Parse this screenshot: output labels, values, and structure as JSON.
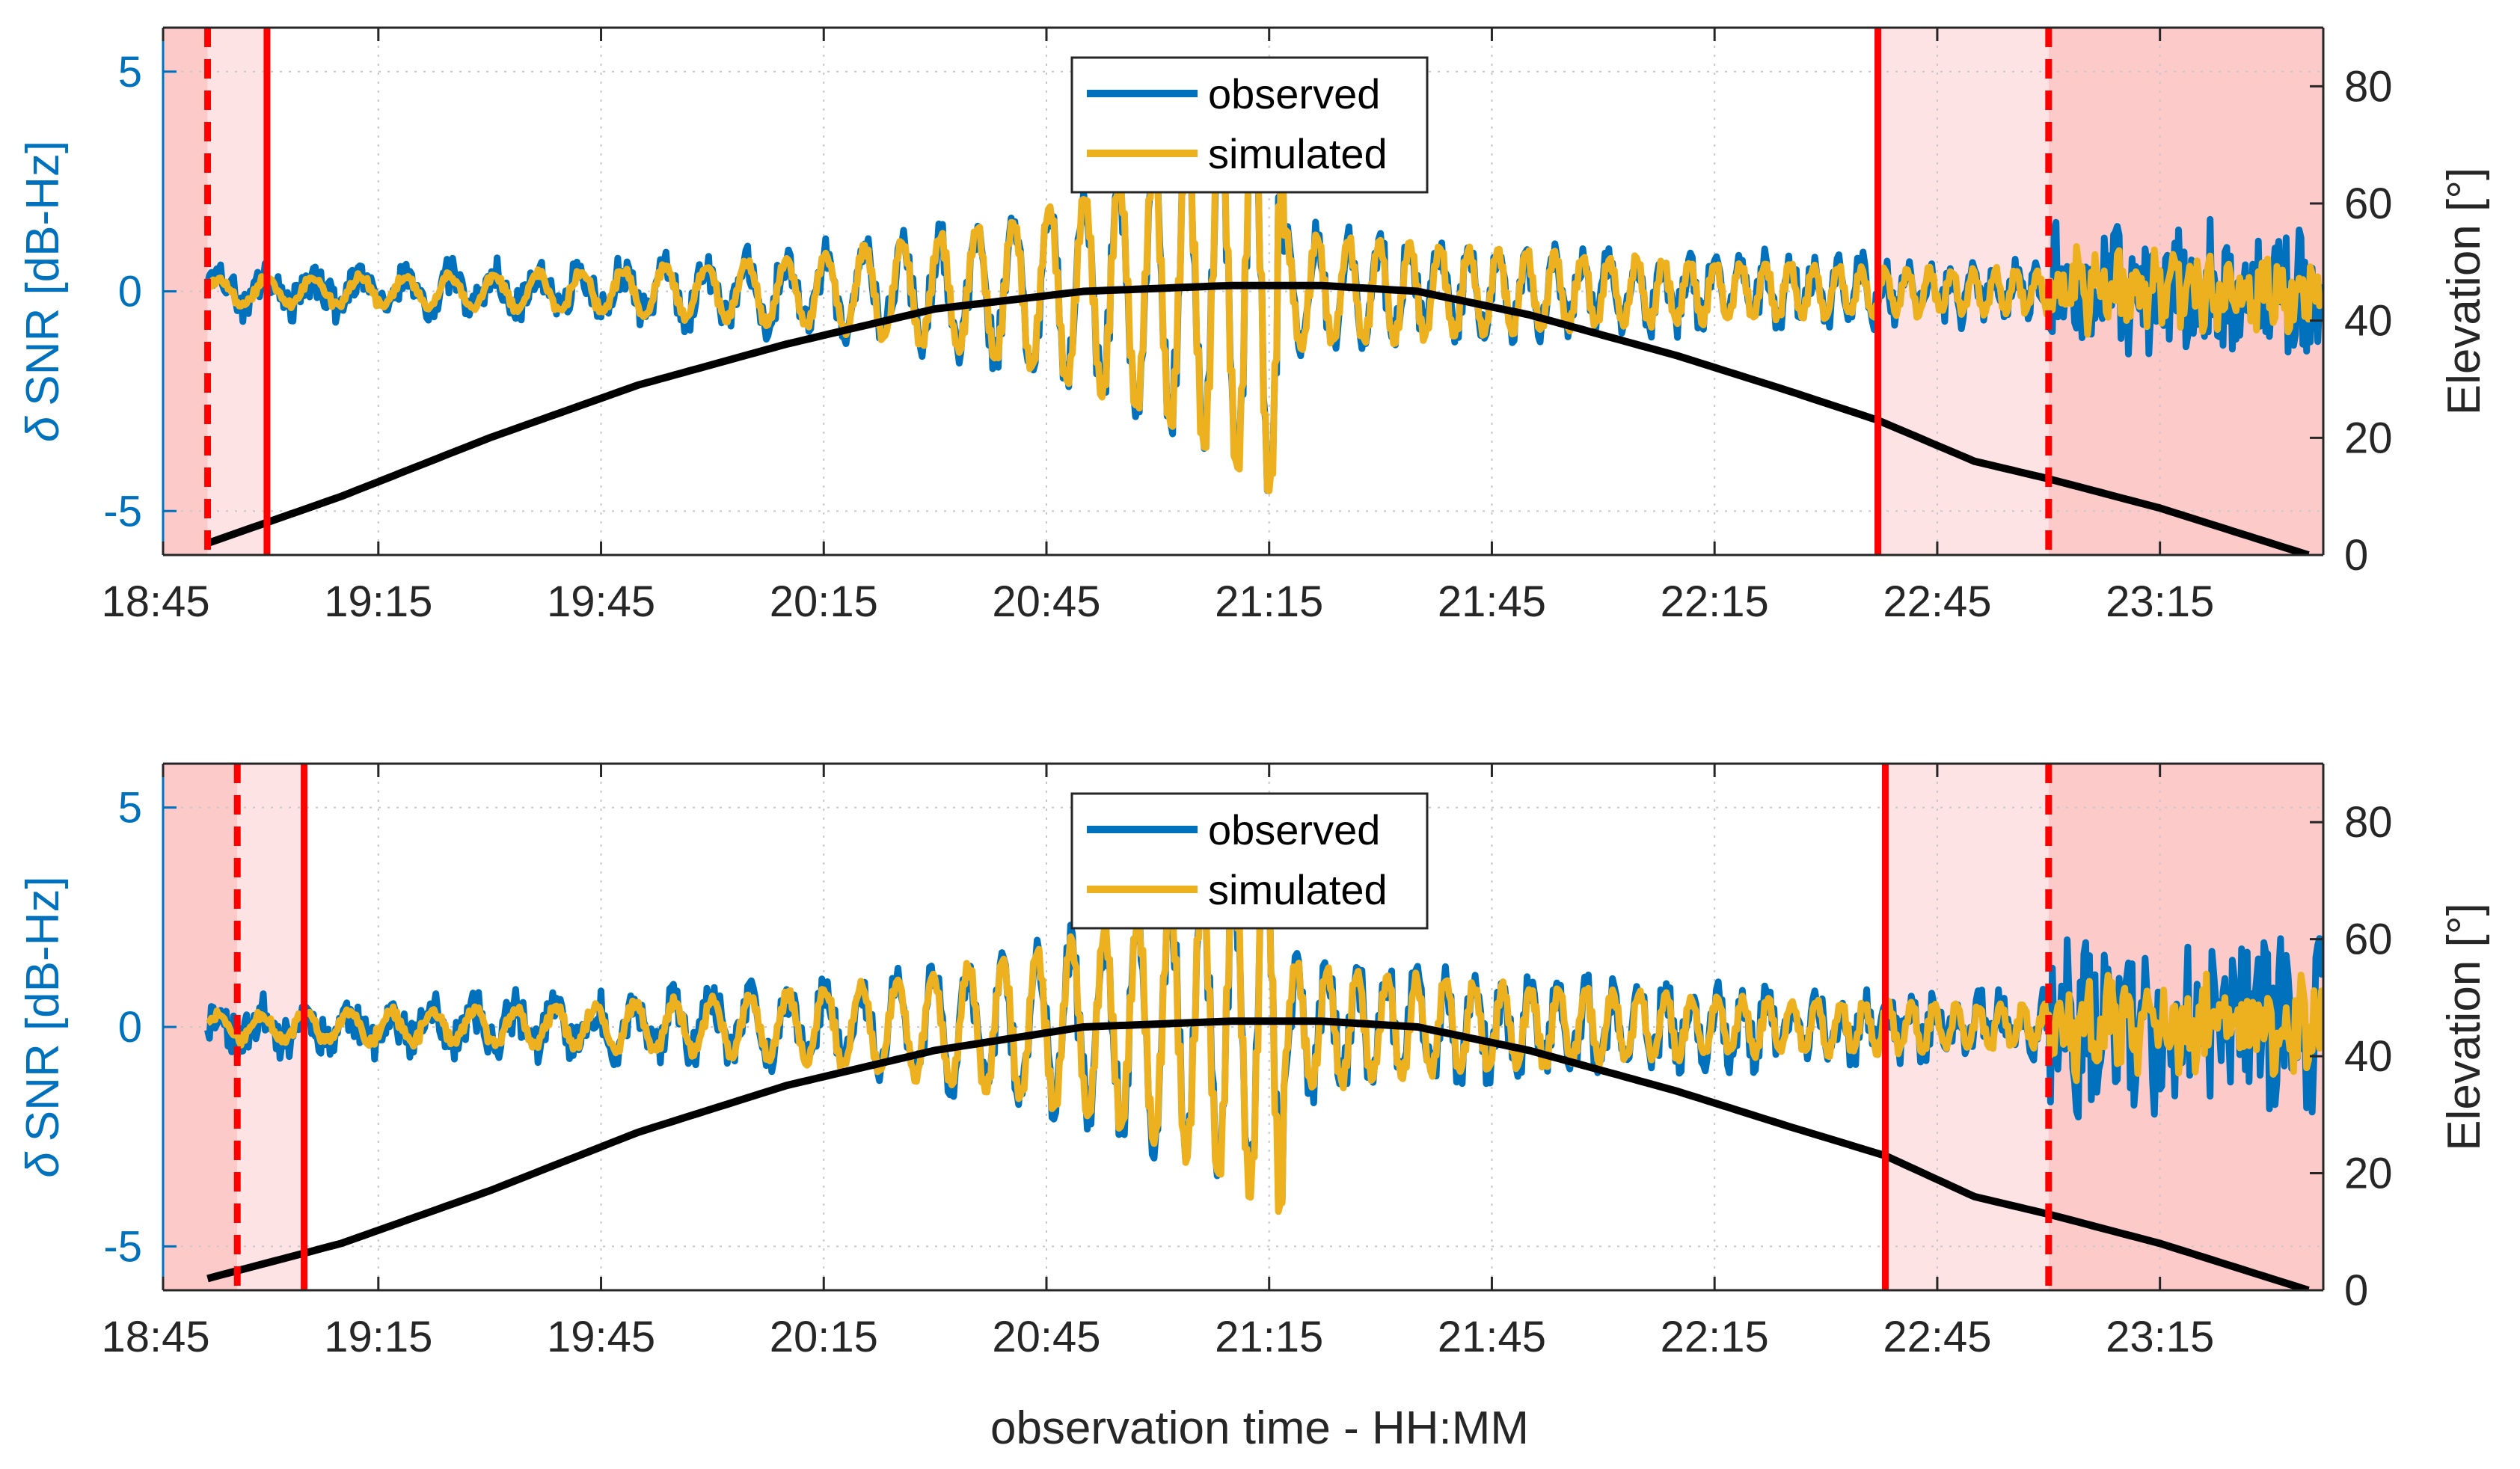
{
  "xlabel": "observation time - HH:MM",
  "colors": {
    "observed": "#0072BD",
    "simulated": "#EDB120",
    "elevation": "#000000",
    "marker": "#FF0000",
    "shade_dark": "#FDCACA",
    "shade_light": "#FDE3E4",
    "left_axis": "#0072BD",
    "grid": "#C8C8C8"
  },
  "chart_data": [
    {
      "type": "line",
      "panel": "top",
      "ylabel_left_symbol": "δ",
      "ylabel_left": "SNR [dB-Hz]",
      "ylabel_right": "Elevation [°]",
      "xlim_minutes": [
        1126,
        1417
      ],
      "ylim_left": [
        -6,
        6
      ],
      "ylim_right": [
        0,
        90
      ],
      "x_ticks": [
        {
          "minutes": 1125,
          "label": "18:45"
        },
        {
          "minutes": 1155,
          "label": "19:15"
        },
        {
          "minutes": 1185,
          "label": "19:45"
        },
        {
          "minutes": 1215,
          "label": "20:15"
        },
        {
          "minutes": 1245,
          "label": "20:45"
        },
        {
          "minutes": 1275,
          "label": "21:15"
        },
        {
          "minutes": 1305,
          "label": "21:45"
        },
        {
          "minutes": 1335,
          "label": "22:15"
        },
        {
          "minutes": 1365,
          "label": "22:45"
        },
        {
          "minutes": 1395,
          "label": "23:15"
        }
      ],
      "y_ticks_left": [
        {
          "value": 5,
          "label": "5"
        },
        {
          "value": 0,
          "label": "0"
        },
        {
          "value": -5,
          "label": "-5"
        }
      ],
      "y_ticks_right": [
        {
          "value": 80,
          "label": "80"
        },
        {
          "value": 60,
          "label": "60"
        },
        {
          "value": 40,
          "label": "40"
        },
        {
          "value": 20,
          "label": "20"
        },
        {
          "value": 0,
          "label": "0"
        }
      ],
      "grid": true,
      "legend": {
        "position": "top-center",
        "entries": [
          "observed",
          "simulated"
        ]
      },
      "shaded_regions": [
        {
          "x0": 1126,
          "x1": 1132,
          "shade": "dark"
        },
        {
          "x0": 1132,
          "x1": 1140,
          "shade": "light"
        },
        {
          "x0": 1357,
          "x1": 1380,
          "shade": "light"
        },
        {
          "x0": 1380,
          "x1": 1417,
          "shade": "dark"
        }
      ],
      "marker_lines": [
        {
          "x": 1132,
          "style": "dashed"
        },
        {
          "x": 1140,
          "style": "solid"
        },
        {
          "x": 1357,
          "style": "solid"
        },
        {
          "x": 1380,
          "style": "dashed"
        }
      ],
      "elevation": {
        "x": [
          1132,
          1150,
          1170,
          1190,
          1210,
          1230,
          1250,
          1270,
          1282,
          1295,
          1310,
          1330,
          1345,
          1357,
          1370,
          1380,
          1395,
          1415
        ],
        "y": [
          2,
          10,
          20,
          29,
          36,
          42,
          45,
          46,
          46,
          45,
          41,
          34,
          28,
          23,
          16,
          13,
          8,
          0
        ]
      },
      "series_params": {
        "start": 1132,
        "end": 1417,
        "peak": 1277,
        "wave_t0": 1132,
        "wave_p0": 6.5,
        "wave_p1": 2.2,
        "amp_before": 4.8,
        "amp_after": 1.1,
        "decay_before": 30,
        "decay_after": 60,
        "noise_flat": 0.15,
        "noise_tail": 1.0,
        "noise_tail_start": 1380,
        "seed": 3
      }
    },
    {
      "type": "line",
      "panel": "bottom",
      "ylabel_left_symbol": "δ",
      "ylabel_left": "SNR [dB-Hz]",
      "ylabel_right": "Elevation [°]",
      "xlim_minutes": [
        1126,
        1417
      ],
      "ylim_left": [
        -6,
        6
      ],
      "ylim_right": [
        0,
        90
      ],
      "x_ticks": [
        {
          "minutes": 1125,
          "label": "18:45"
        },
        {
          "minutes": 1155,
          "label": "19:15"
        },
        {
          "minutes": 1185,
          "label": "19:45"
        },
        {
          "minutes": 1215,
          "label": "20:15"
        },
        {
          "minutes": 1245,
          "label": "20:45"
        },
        {
          "minutes": 1275,
          "label": "21:15"
        },
        {
          "minutes": 1305,
          "label": "21:45"
        },
        {
          "minutes": 1335,
          "label": "22:15"
        },
        {
          "minutes": 1365,
          "label": "22:45"
        },
        {
          "minutes": 1395,
          "label": "23:15"
        }
      ],
      "y_ticks_left": [
        {
          "value": 5,
          "label": "5"
        },
        {
          "value": 0,
          "label": "0"
        },
        {
          "value": -5,
          "label": "-5"
        }
      ],
      "y_ticks_right": [
        {
          "value": 80,
          "label": "80"
        },
        {
          "value": 60,
          "label": "60"
        },
        {
          "value": 40,
          "label": "40"
        },
        {
          "value": 20,
          "label": "20"
        },
        {
          "value": 0,
          "label": "0"
        }
      ],
      "grid": true,
      "legend": {
        "position": "top-center",
        "entries": [
          "observed",
          "simulated"
        ]
      },
      "shaded_regions": [
        {
          "x0": 1126,
          "x1": 1136,
          "shade": "dark"
        },
        {
          "x0": 1136,
          "x1": 1145,
          "shade": "light"
        },
        {
          "x0": 1358,
          "x1": 1380,
          "shade": "light"
        },
        {
          "x0": 1380,
          "x1": 1417,
          "shade": "dark"
        }
      ],
      "marker_lines": [
        {
          "x": 1136,
          "style": "dashed"
        },
        {
          "x": 1145,
          "style": "solid"
        },
        {
          "x": 1358,
          "style": "solid"
        },
        {
          "x": 1380,
          "style": "dashed"
        }
      ],
      "elevation": {
        "x": [
          1132,
          1150,
          1170,
          1190,
          1210,
          1230,
          1250,
          1270,
          1282,
          1295,
          1310,
          1330,
          1345,
          1358,
          1370,
          1380,
          1395,
          1415
        ],
        "y": [
          2,
          8,
          17,
          27,
          35,
          41,
          45,
          46,
          46,
          45,
          41,
          34,
          28,
          23,
          16,
          13,
          8,
          0
        ]
      },
      "series_params": {
        "start": 1132,
        "end": 1417,
        "peak": 1277,
        "wave_t0": 1132,
        "wave_p0": 6.0,
        "wave_p1": 2.4,
        "amp_before": 4.2,
        "amp_after": 1.2,
        "decay_before": 32,
        "decay_after": 55,
        "noise_flat": 0.2,
        "noise_tail": 1.4,
        "noise_tail_start": 1380,
        "seed": 11
      }
    }
  ]
}
